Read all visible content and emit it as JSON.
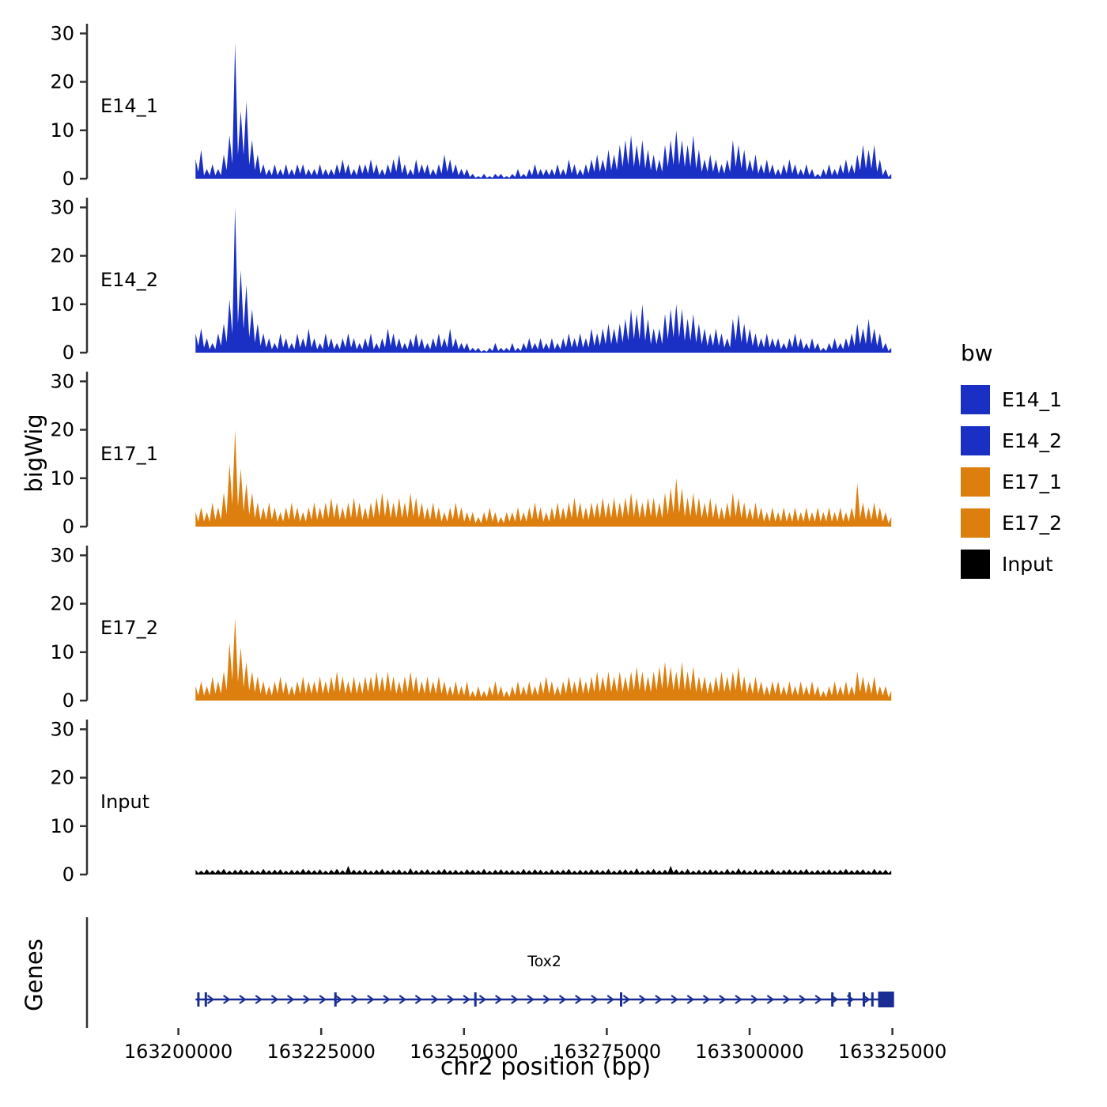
{
  "figure": {
    "y_axis_label": "bigWig",
    "genes_axis_label": "Genes",
    "x_axis_label": "chr2 position (bp)",
    "legend": {
      "title": "bw",
      "entries": [
        {
          "label": "E14_1",
          "color": "#1A2FC4"
        },
        {
          "label": "E14_2",
          "color": "#1A2FC4"
        },
        {
          "label": "E17_1",
          "color": "#DD7F0E"
        },
        {
          "label": "E17_2",
          "color": "#DD7F0E"
        },
        {
          "label": "Input",
          "color": "#000000"
        }
      ]
    }
  },
  "chart_data": {
    "type": "area",
    "title": "",
    "xlabel": "chr2 position (bp)",
    "ylabel": "bigWig",
    "x_domain_bp": [
      163184000,
      163333500
    ],
    "x_ticks": [
      163200000,
      163225000,
      163250000,
      163275000,
      163300000,
      163325000
    ],
    "x_tick_labels": [
      "163200000",
      "163225000",
      "163250000",
      "163275000",
      "163300000",
      "163325000"
    ],
    "y_ticks": [
      0,
      10,
      20,
      30
    ],
    "y_max": 32,
    "data_start_bp": 163203000,
    "data_end_bp": 163324800,
    "axis_color": "#333333",
    "tracks": [
      {
        "name": "E14_1",
        "color": "#1A2FC4",
        "values": [
          4,
          6,
          2,
          3,
          2,
          5,
          9,
          28,
          14,
          16,
          8,
          5,
          3,
          2,
          3,
          2,
          3,
          2,
          3,
          3,
          2,
          2,
          3,
          2,
          2,
          3,
          4,
          3,
          2,
          3,
          3,
          4,
          3,
          2,
          3,
          4,
          5,
          3,
          2,
          4,
          3,
          3,
          2,
          3,
          5,
          4,
          3,
          2,
          2,
          1,
          0.5,
          1,
          0.5,
          1,
          1,
          0.5,
          1,
          2,
          1,
          2,
          3,
          2,
          2,
          2,
          3,
          2,
          4,
          3,
          2,
          3,
          4,
          5,
          4,
          6,
          5,
          7,
          8,
          9,
          7,
          8,
          6,
          5,
          4,
          7,
          8,
          10,
          8,
          7,
          9,
          6,
          4,
          5,
          4,
          3,
          4,
          8,
          7,
          6,
          4,
          5,
          3,
          4,
          3,
          2,
          3,
          4,
          3,
          2,
          3,
          2,
          1,
          2,
          3,
          2,
          3,
          4,
          3,
          5,
          7,
          6,
          7,
          4,
          2,
          1
        ]
      },
      {
        "name": "E14_2",
        "color": "#1A2FC4",
        "values": [
          4,
          5,
          3,
          2,
          4,
          6,
          11,
          30,
          17,
          14,
          9,
          6,
          4,
          3,
          2,
          4,
          3,
          2,
          4,
          3,
          5,
          3,
          2,
          4,
          3,
          2,
          3,
          4,
          3,
          2,
          3,
          4,
          2,
          3,
          5,
          4,
          3,
          2,
          3,
          4,
          3,
          2,
          3,
          4,
          3,
          5,
          3,
          2,
          2,
          1,
          1,
          0.5,
          1,
          2,
          1,
          1,
          2,
          1,
          2,
          3,
          2,
          3,
          2,
          3,
          2,
          3,
          4,
          3,
          4,
          3,
          5,
          4,
          5,
          6,
          5,
          6,
          7,
          9,
          8,
          10,
          7,
          5,
          5,
          8,
          9,
          10,
          9,
          7,
          8,
          6,
          5,
          4,
          5,
          4,
          3,
          7,
          8,
          6,
          5,
          4,
          3,
          4,
          3,
          3,
          2,
          3,
          4,
          3,
          2,
          3,
          2,
          1,
          2,
          3,
          2,
          3,
          4,
          6,
          5,
          7,
          5,
          4,
          2,
          1
        ]
      },
      {
        "name": "E17_1",
        "color": "#DD7F0E",
        "values": [
          3,
          4,
          3,
          5,
          4,
          7,
          13,
          20,
          12,
          9,
          7,
          5,
          4,
          5,
          4,
          3,
          4,
          5,
          4,
          3,
          4,
          5,
          4,
          5,
          6,
          5,
          4,
          5,
          6,
          5,
          4,
          5,
          6,
          7,
          6,
          5,
          6,
          5,
          7,
          6,
          5,
          4,
          5,
          4,
          3,
          4,
          5,
          4,
          3,
          3,
          2,
          3,
          4,
          3,
          2,
          3,
          3,
          4,
          3,
          4,
          5,
          4,
          3,
          4,
          5,
          4,
          5,
          6,
          5,
          4,
          5,
          5,
          6,
          5,
          6,
          5,
          6,
          7,
          6,
          5,
          6,
          6,
          5,
          7,
          8,
          10,
          8,
          6,
          7,
          6,
          5,
          6,
          5,
          4,
          5,
          7,
          6,
          5,
          4,
          5,
          4,
          3,
          4,
          3,
          4,
          3,
          4,
          3,
          4,
          3,
          4,
          3,
          4,
          3,
          4,
          3,
          4,
          9,
          5,
          4,
          5,
          4,
          3,
          2
        ]
      },
      {
        "name": "E17_2",
        "color": "#DD7F0E",
        "values": [
          3,
          4,
          3,
          5,
          4,
          6,
          12,
          17,
          11,
          8,
          6,
          5,
          4,
          3,
          4,
          5,
          4,
          3,
          4,
          5,
          4,
          4,
          5,
          4,
          5,
          6,
          5,
          4,
          5,
          4,
          5,
          5,
          6,
          5,
          6,
          5,
          4,
          5,
          6,
          5,
          4,
          5,
          4,
          5,
          4,
          3,
          4,
          3,
          4,
          2,
          3,
          2,
          3,
          4,
          3,
          2,
          3,
          4,
          3,
          4,
          3,
          4,
          5,
          4,
          3,
          4,
          5,
          4,
          5,
          4,
          5,
          6,
          5,
          6,
          5,
          6,
          5,
          6,
          7,
          6,
          5,
          6,
          7,
          8,
          7,
          6,
          8,
          6,
          7,
          5,
          5,
          4,
          5,
          6,
          5,
          6,
          7,
          5,
          4,
          5,
          4,
          3,
          4,
          4,
          3,
          4,
          3,
          4,
          3,
          4,
          3,
          2,
          3,
          4,
          3,
          4,
          3,
          6,
          5,
          4,
          5,
          3,
          3,
          2
        ]
      },
      {
        "name": "Input",
        "color": "#000000",
        "values": [
          1,
          0.8,
          1.1,
          0.9,
          1,
          1.2,
          0.8,
          1,
          1.1,
          0.9,
          1,
          0.8,
          1.2,
          0.9,
          1,
          1.1,
          0.8,
          1,
          0.9,
          1.2,
          1,
          0.9,
          1.1,
          0.8,
          1,
          1.2,
          0.9,
          1.8,
          1,
          0.9,
          1.1,
          0.8,
          1,
          1.2,
          0.9,
          1,
          1.1,
          0.8,
          1.3,
          0.9,
          1,
          1.1,
          0.8,
          1,
          1.2,
          0.9,
          1,
          0.8,
          1.1,
          1,
          0.9,
          1.2,
          0.8,
          1,
          1.1,
          0.9,
          1,
          0.8,
          1.2,
          0.9,
          1.1,
          1,
          0.8,
          1.1,
          0.9,
          1,
          1.2,
          0.8,
          1,
          0.9,
          1.1,
          1,
          0.9,
          1.2,
          0.8,
          1,
          1.1,
          0.9,
          1.3,
          0.8,
          1,
          1.2,
          0.9,
          1,
          1.8,
          1.1,
          0.9,
          1.2,
          0.8,
          1,
          0.9,
          1.1,
          1,
          0.8,
          1.2,
          0.9,
          1.3,
          1,
          0.8,
          1.1,
          0.9,
          1,
          1.2,
          0.8,
          1,
          1.1,
          0.9,
          1,
          1.2,
          0.8,
          1,
          0.9,
          1.1,
          0.8,
          1,
          1.2,
          0.9,
          1,
          1.1,
          0.8,
          1.2,
          0.9,
          1,
          0.8
        ]
      }
    ],
    "gene": {
      "name": "Tox2",
      "strand": "+",
      "start_bp": 163203000,
      "end_bp": 163325200,
      "color": "#192D94",
      "exon_ticks_bp": [
        163203500,
        163204800,
        163227500,
        163252000,
        163277500,
        163314500,
        163317500,
        163320000,
        163321500
      ],
      "end_box": {
        "start_bp": 163322500,
        "end_bp": 163325300
      },
      "arrow_spacing_bp": 2800
    }
  }
}
